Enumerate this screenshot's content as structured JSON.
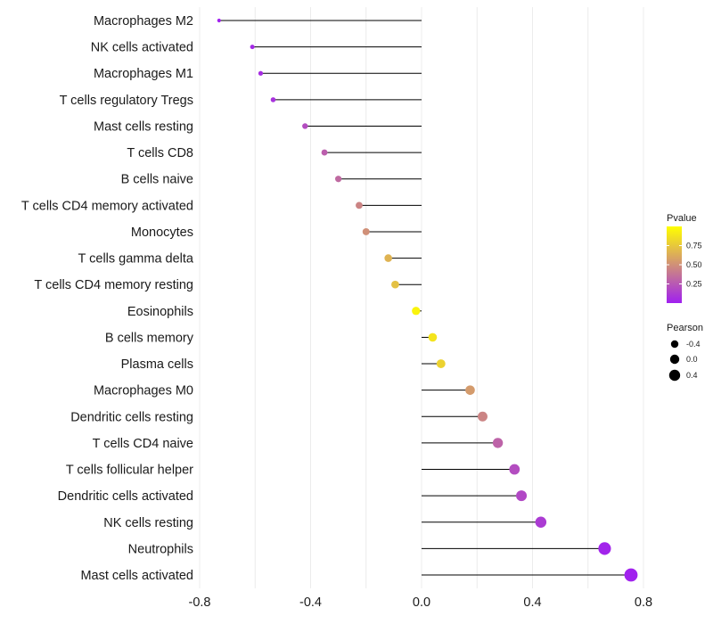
{
  "chart_data": {
    "type": "lollipop",
    "title": "",
    "xlabel": "",
    "ylabel": "",
    "xlim": [
      -0.8,
      0.8
    ],
    "xticks": [
      "-0.8",
      "-0.4",
      "0.0",
      "0.4",
      "0.8"
    ],
    "xtick_values": [
      -0.8,
      -0.4,
      0.0,
      0.4,
      0.8
    ],
    "colors": {
      "low": "#a020f0",
      "high": "#ffff00",
      "stem": "#000000",
      "grid": "#ececec"
    },
    "points": [
      {
        "label": "Macrophages M2",
        "pearson": -0.73,
        "pvalue": 0.01
      },
      {
        "label": "NK cells activated",
        "pearson": -0.61,
        "pvalue": 0.04
      },
      {
        "label": "Macrophages M1",
        "pearson": -0.58,
        "pvalue": 0.06
      },
      {
        "label": "T cells regulatory  Tregs",
        "pearson": -0.535,
        "pvalue": 0.08
      },
      {
        "label": "Mast cells resting",
        "pearson": -0.42,
        "pvalue": 0.2
      },
      {
        "label": "T cells CD8",
        "pearson": -0.35,
        "pvalue": 0.28
      },
      {
        "label": "B cells naive",
        "pearson": -0.3,
        "pvalue": 0.33
      },
      {
        "label": "T cells CD4 memory activated",
        "pearson": -0.225,
        "pvalue": 0.45
      },
      {
        "label": "Monocytes",
        "pearson": -0.2,
        "pvalue": 0.5
      },
      {
        "label": "T cells gamma delta",
        "pearson": -0.12,
        "pvalue": 0.66
      },
      {
        "label": "T cells CD4 memory resting",
        "pearson": -0.095,
        "pvalue": 0.72
      },
      {
        "label": "Eosinophils",
        "pearson": -0.02,
        "pvalue": 0.95
      },
      {
        "label": "B cells memory",
        "pearson": 0.04,
        "pvalue": 0.88
      },
      {
        "label": "Plasma cells",
        "pearson": 0.07,
        "pvalue": 0.8
      },
      {
        "label": "Macrophages M0",
        "pearson": 0.175,
        "pvalue": 0.55
      },
      {
        "label": "Dendritic cells resting",
        "pearson": 0.22,
        "pvalue": 0.45
      },
      {
        "label": "T cells CD4 naive",
        "pearson": 0.275,
        "pvalue": 0.3
      },
      {
        "label": "T cells follicular helper",
        "pearson": 0.335,
        "pvalue": 0.2
      },
      {
        "label": "Dendritic cells activated",
        "pearson": 0.36,
        "pvalue": 0.18
      },
      {
        "label": "NK cells resting",
        "pearson": 0.43,
        "pvalue": 0.12
      },
      {
        "label": "Neutrophils",
        "pearson": 0.66,
        "pvalue": 0.02
      },
      {
        "label": "Mast cells activated",
        "pearson": 0.755,
        "pvalue": 0.01
      }
    ],
    "legend_color": {
      "title": "Pvalue",
      "range": [
        0,
        1
      ],
      "ticks": [
        "0.75",
        "0.50",
        "0.25"
      ],
      "tick_values": [
        0.75,
        0.5,
        0.25
      ]
    },
    "legend_size": {
      "title": "Pearson",
      "entries": [
        "-0.4",
        "0.0",
        "0.4"
      ],
      "entry_values": [
        -0.4,
        0.0,
        0.4
      ]
    }
  }
}
